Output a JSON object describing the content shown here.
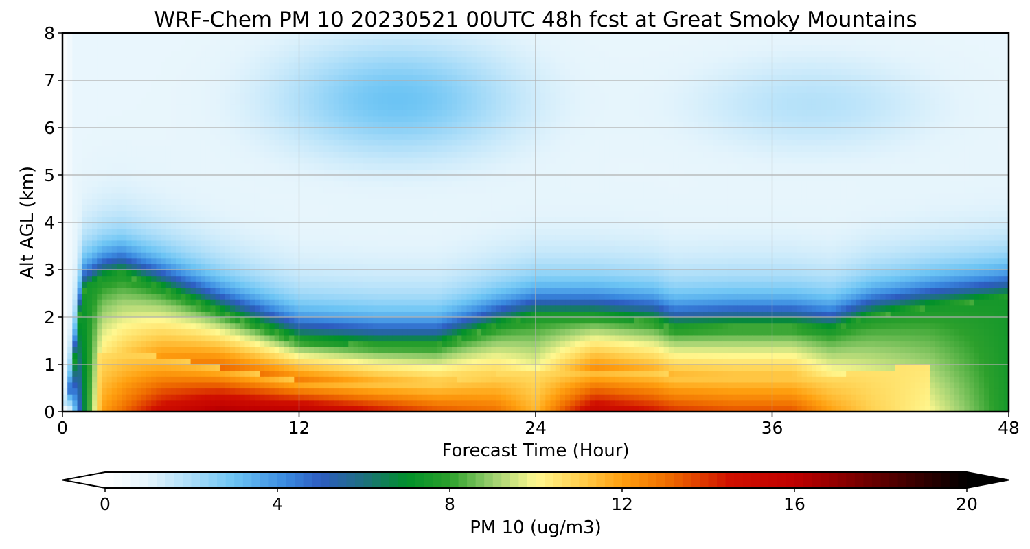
{
  "chart_data": {
    "type": "heatmap",
    "subtype": "filled-contour time-height cross section",
    "title": "WRF-Chem PM 10  20230521 00UTC 48h fcst at Great Smoky Mountains",
    "xlabel": "Forecast Time (Hour)",
    "ylabel": "Alt AGL (km)",
    "xlim": [
      0,
      48
    ],
    "ylim": [
      0,
      8
    ],
    "xticks": [
      0,
      12,
      24,
      36,
      48
    ],
    "yticks": [
      0,
      1,
      2,
      3,
      4,
      5,
      6,
      7,
      8
    ],
    "grid": true,
    "x": [
      0,
      0.5,
      1,
      2,
      3,
      4,
      6,
      8,
      10,
      12,
      14,
      16,
      18,
      20,
      22,
      24,
      26,
      28,
      30,
      32,
      34,
      36,
      38,
      40,
      42,
      44,
      46,
      48
    ],
    "y": [
      0,
      0.5,
      1,
      1.5,
      2,
      2.5,
      3,
      3.5,
      4,
      4.5,
      5,
      5.5,
      6,
      6.5,
      7,
      7.5,
      8
    ],
    "colorbar": {
      "label": "PM 10  (ug/m3)",
      "min": 0,
      "max": 20,
      "ticks": [
        0,
        4,
        8,
        12,
        16,
        20
      ],
      "extend": "both",
      "orientation": "horizontal",
      "position": "bottom",
      "stops": [
        [
          0,
          "#ffffff"
        ],
        [
          1,
          "#e4f4fc"
        ],
        [
          2.2,
          "#9ed8f8"
        ],
        [
          3,
          "#6cc4f4"
        ],
        [
          4.2,
          "#3a8ae0"
        ],
        [
          5,
          "#2d5cc0"
        ],
        [
          6,
          "#1e7080"
        ],
        [
          7,
          "#00902a"
        ],
        [
          8,
          "#2ca02c"
        ],
        [
          9,
          "#9cd070"
        ],
        [
          10,
          "#fff890"
        ],
        [
          11,
          "#ffd050"
        ],
        [
          12,
          "#ffa010"
        ],
        [
          13,
          "#f07000"
        ],
        [
          14.5,
          "#d01000"
        ],
        [
          16,
          "#c00000"
        ],
        [
          18,
          "#600000"
        ],
        [
          20,
          "#000000"
        ]
      ]
    },
    "approx_features": [
      "Near-zero PM10 in a thin column at forecast hour 0",
      "Surface maximum about 15-17 ug/m3 below 0.6 km between hours 5 and 13",
      "Second surface maximum about 14-15 ug/m3 near hours 26-37",
      "Boundary-layer top gradient (green/blue band) near 2-3.5 km early, descending to about 1.3-2 km and rising to about 2.3 km by hour 48",
      "Clean air aloft, 0-3 ug/m3, with a weak maximum of about 3 ug/m3 near 6.5 km at hours 14-22"
    ]
  }
}
